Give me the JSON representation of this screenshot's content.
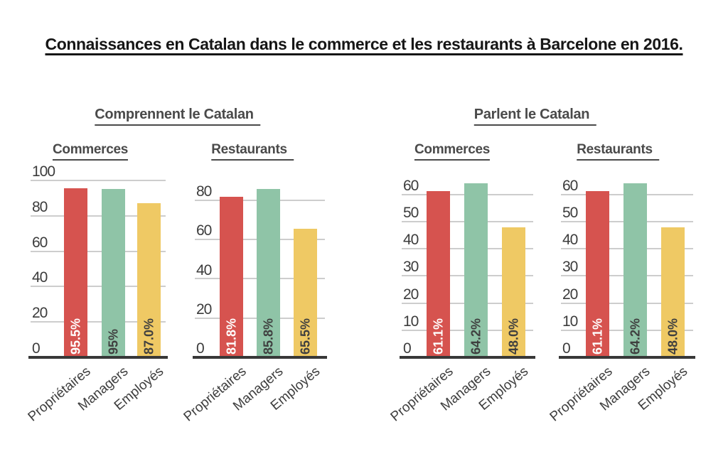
{
  "title": "Connaissances en Catalan dans le commerce et les restaurants à Barcelone en 2016.",
  "chart_data": {
    "type": "bar",
    "title": "Connaissances en Catalan dans le commerce et les restaurants à Barcelone en 2016.",
    "categories": [
      "Propriétaires",
      "Managers",
      "Employés"
    ],
    "bar_colors": [
      "#D6534F",
      "#8FC4A7",
      "#EFC964"
    ],
    "bar_label_colors": [
      "#FFFFFF",
      "#3F3F3F",
      "#3F3F3F"
    ],
    "grid_color": "#CDCDCD",
    "axis_color": "#383838",
    "grid": true,
    "legend_position": "none",
    "xlabel": "",
    "ylabel": "",
    "groups": [
      {
        "label": "Comprennent le Catalan"
      },
      {
        "label": "Parlent le Catalan"
      }
    ],
    "charts": [
      {
        "group": "Comprennent le Catalan",
        "title": "Commerces",
        "values": [
          95.5,
          95,
          87.0
        ],
        "bar_labels": [
          "95.5%",
          "95%",
          "87.0%"
        ],
        "yticks": [
          0,
          20,
          40,
          60,
          80,
          100
        ],
        "ylim": [
          0,
          105.6
        ]
      },
      {
        "group": "Comprennent le Catalan",
        "title": "Restaurants",
        "values": [
          81.8,
          85.8,
          65.5
        ],
        "bar_labels": [
          "81.8%",
          "85.8%",
          "65.5%"
        ],
        "yticks": [
          0,
          20,
          40,
          60,
          80
        ],
        "ylim": [
          0,
          95.2
        ]
      },
      {
        "group": "Parlent le Catalan",
        "title": "Commerces",
        "values": [
          61.1,
          64.2,
          48.0
        ],
        "bar_labels": [
          "61.1%",
          "64.2%",
          "48.0%"
        ],
        "yticks": [
          0,
          10,
          20,
          30,
          40,
          50,
          60
        ],
        "ylim": [
          0,
          68.8
        ]
      },
      {
        "group": "Parlent le Catalan",
        "title": "Restaurants",
        "values": [
          61.1,
          64.2,
          48.0
        ],
        "bar_labels": [
          "61.1%",
          "64.2%",
          "48.0%"
        ],
        "yticks": [
          0,
          10,
          20,
          30,
          40,
          50,
          60
        ],
        "ylim": [
          0,
          68.8
        ]
      }
    ]
  }
}
